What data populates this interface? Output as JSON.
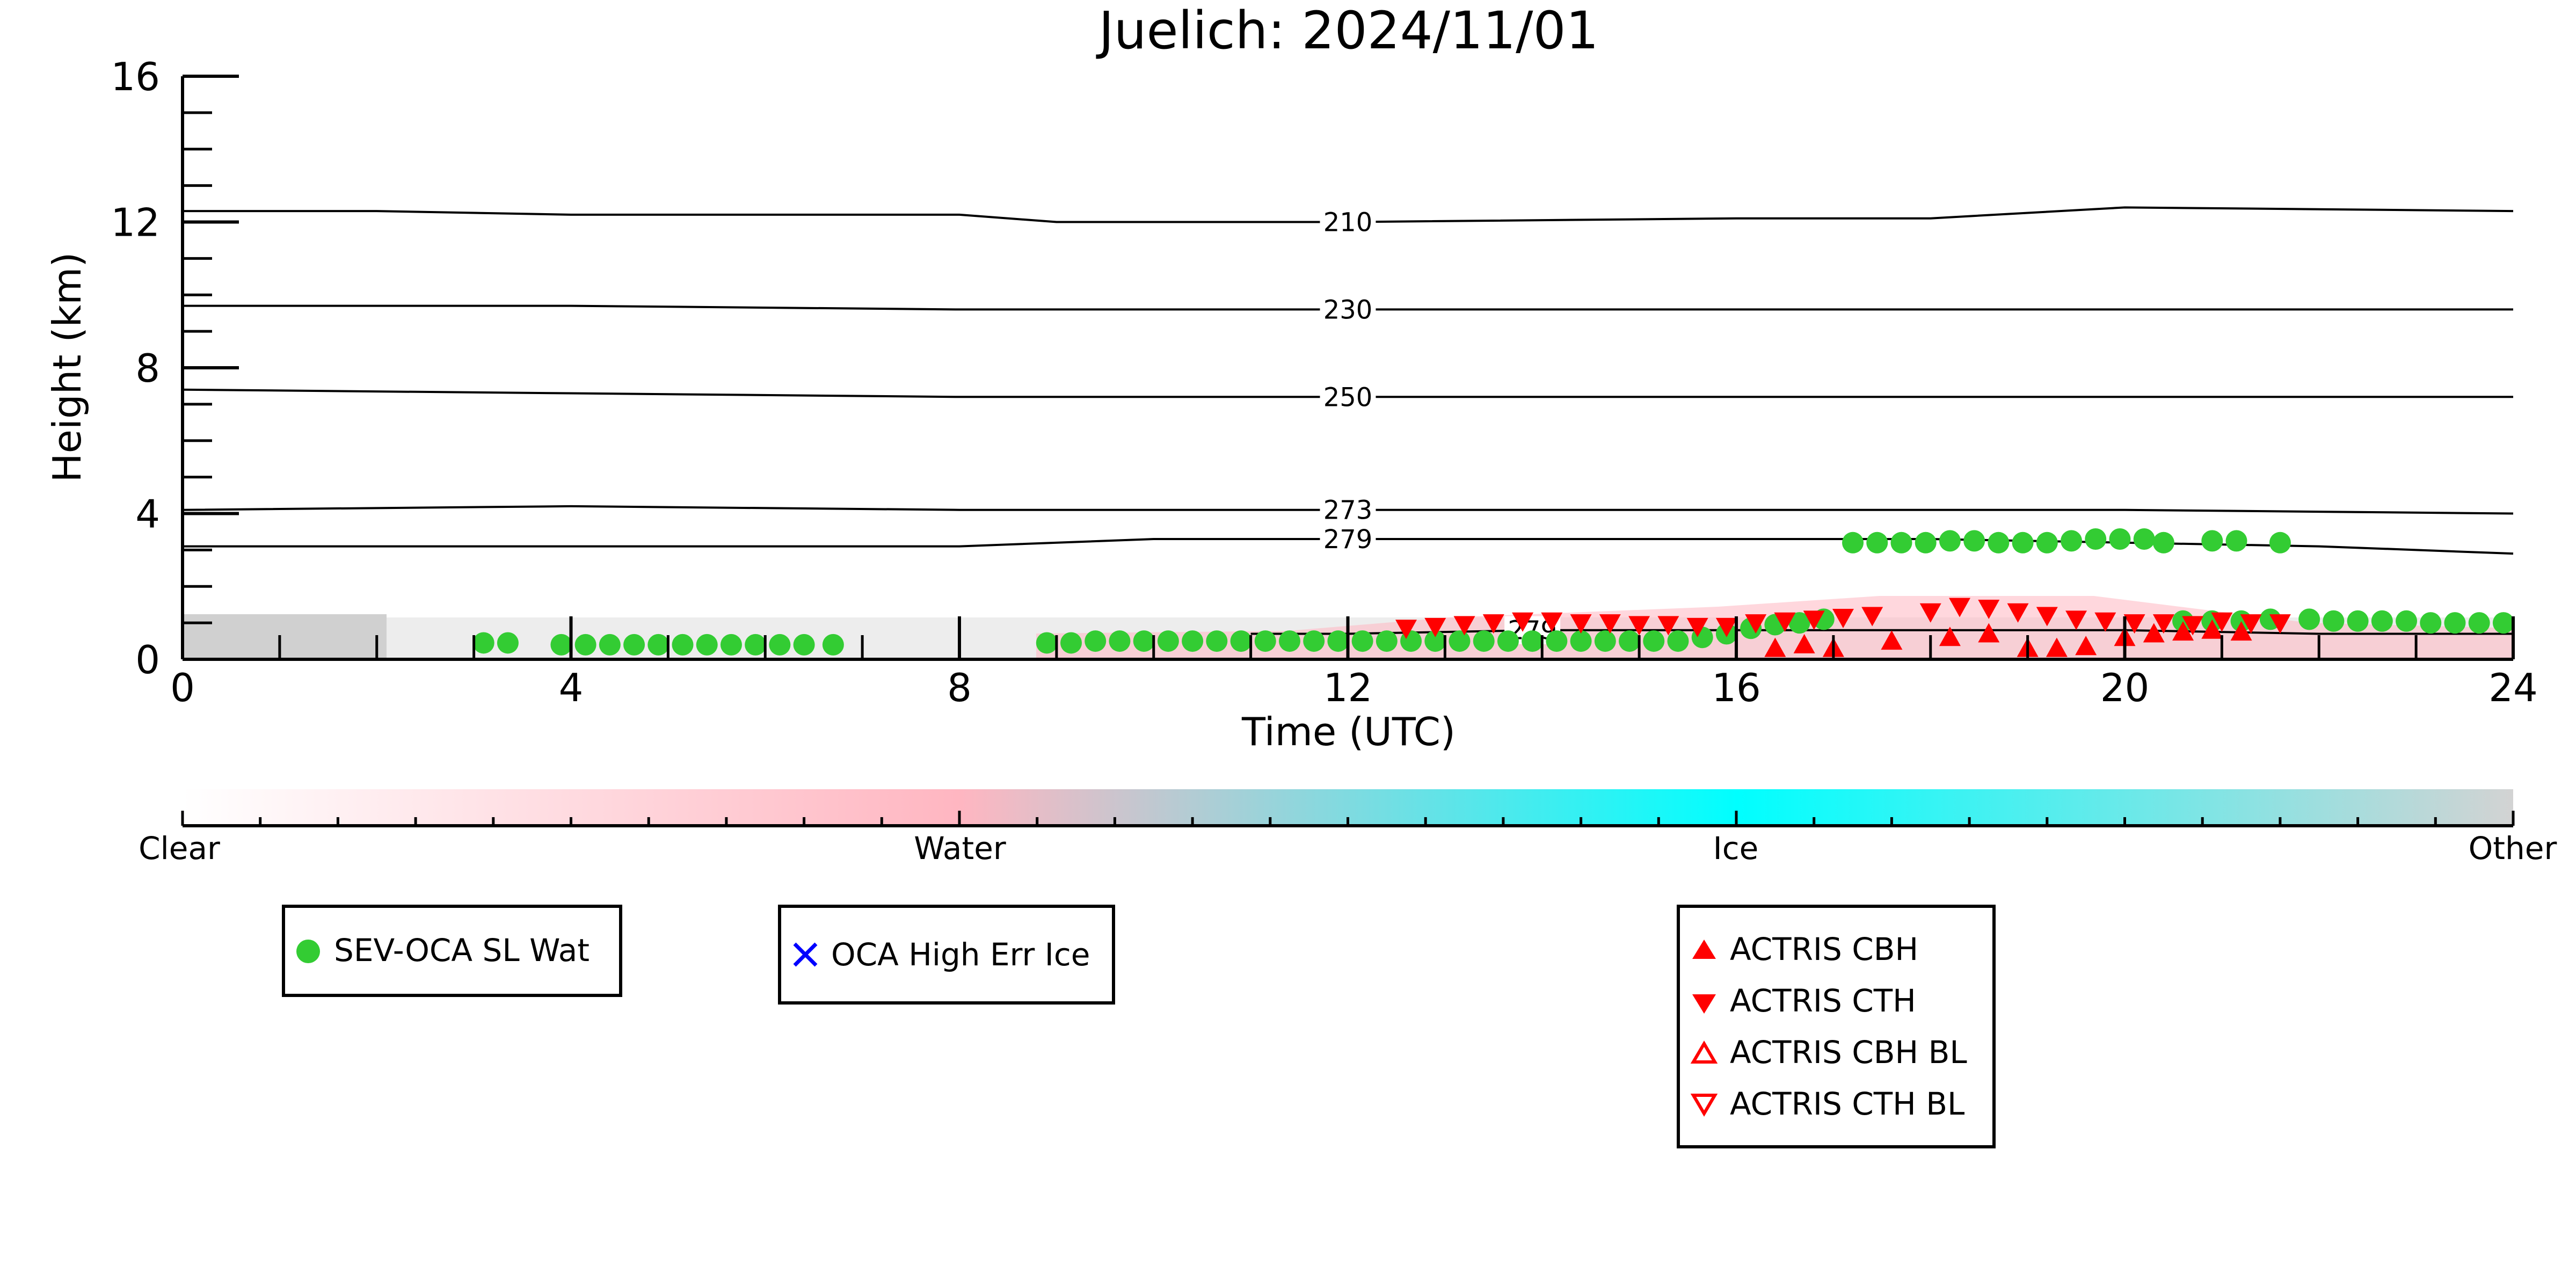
{
  "chart_data": {
    "type": "scatter",
    "title": "Juelich: 2024/11/01",
    "xlabel": "Time (UTC)",
    "ylabel": "Height (km)",
    "xlim": [
      0,
      24
    ],
    "ylim": [
      0,
      16
    ],
    "x_ticks": [
      0,
      4,
      8,
      12,
      16,
      20,
      24
    ],
    "y_ticks": [
      0,
      4,
      8,
      12,
      16
    ],
    "x_tick_labels": [
      "0",
      "4",
      "8",
      "12",
      "16",
      "20",
      "24"
    ],
    "y_tick_labels": [
      "0",
      "4",
      "8",
      "12",
      "16"
    ],
    "colorbar": {
      "labels": [
        "Clear",
        "Water",
        "Ice",
        "Other"
      ],
      "colors": [
        "#ffffff",
        "#ffb6c1",
        "#00ffff",
        "#d3d3d3"
      ]
    },
    "temperature_contours": [
      {
        "label": "210",
        "x": [
          0,
          2,
          4,
          8,
          9,
          12,
          16,
          18,
          20,
          24
        ],
        "y": [
          12.3,
          12.3,
          12.2,
          12.2,
          12.0,
          12.0,
          12.1,
          12.1,
          12.4,
          12.3
        ]
      },
      {
        "label": "230",
        "x": [
          0,
          4,
          8,
          12,
          16,
          20,
          24
        ],
        "y": [
          9.7,
          9.7,
          9.6,
          9.6,
          9.6,
          9.6,
          9.6
        ]
      },
      {
        "label": "250",
        "x": [
          0,
          4,
          8,
          12,
          16,
          20,
          24
        ],
        "y": [
          7.4,
          7.3,
          7.2,
          7.2,
          7.2,
          7.2,
          7.2
        ]
      },
      {
        "label": "273",
        "x": [
          0,
          4,
          8,
          12,
          16,
          20,
          24
        ],
        "y": [
          4.1,
          4.2,
          4.1,
          4.1,
          4.1,
          4.1,
          4.0
        ]
      },
      {
        "label": "279",
        "x": [
          0,
          4,
          8,
          10,
          14,
          18,
          20,
          22,
          24
        ],
        "y": [
          3.1,
          3.1,
          3.1,
          3.3,
          3.3,
          3.3,
          3.2,
          3.1,
          2.9
        ]
      },
      {
        "label": "279",
        "x": [
          11,
          12,
          14,
          16,
          18,
          20,
          22,
          24
        ],
        "y": [
          0.7,
          0.7,
          0.8,
          0.8,
          0.8,
          0.8,
          0.7,
          0.7
        ]
      }
    ],
    "series": [
      {
        "name": "SEV-OCA SL Wat",
        "marker": "circle",
        "color": "#33cc33",
        "x": [
          3.1,
          3.35,
          3.9,
          4.15,
          4.4,
          4.65,
          4.9,
          5.15,
          5.4,
          5.65,
          5.9,
          6.15,
          6.4,
          6.7,
          8.9,
          9.15,
          9.4,
          9.65,
          9.9,
          10.15,
          10.4,
          10.65,
          10.9,
          11.15,
          11.4,
          11.65,
          11.9,
          12.15,
          12.4,
          12.65,
          12.9,
          13.15,
          13.4,
          13.65,
          13.9,
          14.15,
          14.4,
          14.65,
          14.9,
          15.15,
          15.4,
          15.65,
          15.9,
          16.15,
          16.4,
          16.65,
          16.9,
          17.2,
          17.45,
          17.7,
          17.95,
          18.2,
          18.45,
          18.7,
          18.95,
          19.2,
          19.45,
          19.7,
          19.95,
          20.2,
          20.4,
          20.9,
          21.15,
          21.6,
          20.6,
          20.9,
          21.2,
          21.5,
          21.9,
          22.15,
          22.4,
          22.65,
          22.9,
          23.15,
          23.4,
          23.65,
          23.9
        ],
        "y": [
          0.45,
          0.45,
          0.4,
          0.4,
          0.4,
          0.4,
          0.4,
          0.4,
          0.4,
          0.4,
          0.4,
          0.4,
          0.4,
          0.4,
          0.45,
          0.45,
          0.5,
          0.5,
          0.5,
          0.5,
          0.5,
          0.5,
          0.5,
          0.5,
          0.5,
          0.5,
          0.5,
          0.5,
          0.5,
          0.5,
          0.5,
          0.5,
          0.5,
          0.5,
          0.5,
          0.5,
          0.5,
          0.5,
          0.5,
          0.5,
          0.5,
          0.6,
          0.7,
          0.85,
          0.95,
          1.0,
          1.1,
          3.2,
          3.2,
          3.2,
          3.2,
          3.25,
          3.25,
          3.2,
          3.2,
          3.2,
          3.25,
          3.3,
          3.3,
          3.3,
          3.2,
          3.25,
          3.25,
          3.2,
          1.05,
          1.05,
          1.05,
          1.1,
          1.1,
          1.05,
          1.05,
          1.05,
          1.05,
          1.0,
          1.0,
          1.0,
          1.0
        ]
      },
      {
        "name": "OCA High Err Ice",
        "marker": "x",
        "color": "#0000ff",
        "x": [],
        "y": []
      },
      {
        "name": "ACTRIS CBH",
        "marker": "triangle-up",
        "color": "#ff0000",
        "x": [
          16.4,
          16.7,
          17.0,
          17.6,
          18.2,
          18.6,
          19.0,
          19.3,
          19.6,
          20.0,
          20.3,
          20.6,
          20.9,
          21.2
        ],
        "y": [
          0.3,
          0.4,
          0.3,
          0.5,
          0.6,
          0.7,
          0.3,
          0.3,
          0.35,
          0.6,
          0.7,
          0.75,
          0.8,
          0.75
        ]
      },
      {
        "name": "ACTRIS CTH",
        "marker": "triangle-down",
        "color": "#ff0000",
        "x": [
          12.6,
          12.9,
          13.2,
          13.5,
          13.8,
          14.1,
          14.4,
          14.7,
          15.0,
          15.3,
          15.6,
          15.9,
          16.2,
          16.5,
          16.8,
          17.1,
          17.4,
          18.0,
          18.3,
          18.6,
          18.9,
          19.2,
          19.5,
          19.8,
          20.1,
          20.4,
          20.7,
          21.0,
          21.3,
          21.6
        ],
        "y": [
          0.85,
          0.9,
          0.95,
          1.0,
          1.05,
          1.05,
          1.0,
          1.0,
          0.95,
          0.95,
          0.9,
          0.9,
          1.0,
          1.05,
          1.1,
          1.15,
          1.2,
          1.3,
          1.45,
          1.4,
          1.3,
          1.2,
          1.1,
          1.05,
          1.0,
          1.0,
          0.95,
          1.05,
          1.0,
          1.0
        ]
      },
      {
        "name": "ACTRIS CBH BL",
        "marker": "triangle-up-open",
        "color": "#ff0000",
        "x": [],
        "y": []
      },
      {
        "name": "ACTRIS CTH BL",
        "marker": "triangle-down-open",
        "color": "#ff0000",
        "x": [],
        "y": []
      }
    ]
  }
}
